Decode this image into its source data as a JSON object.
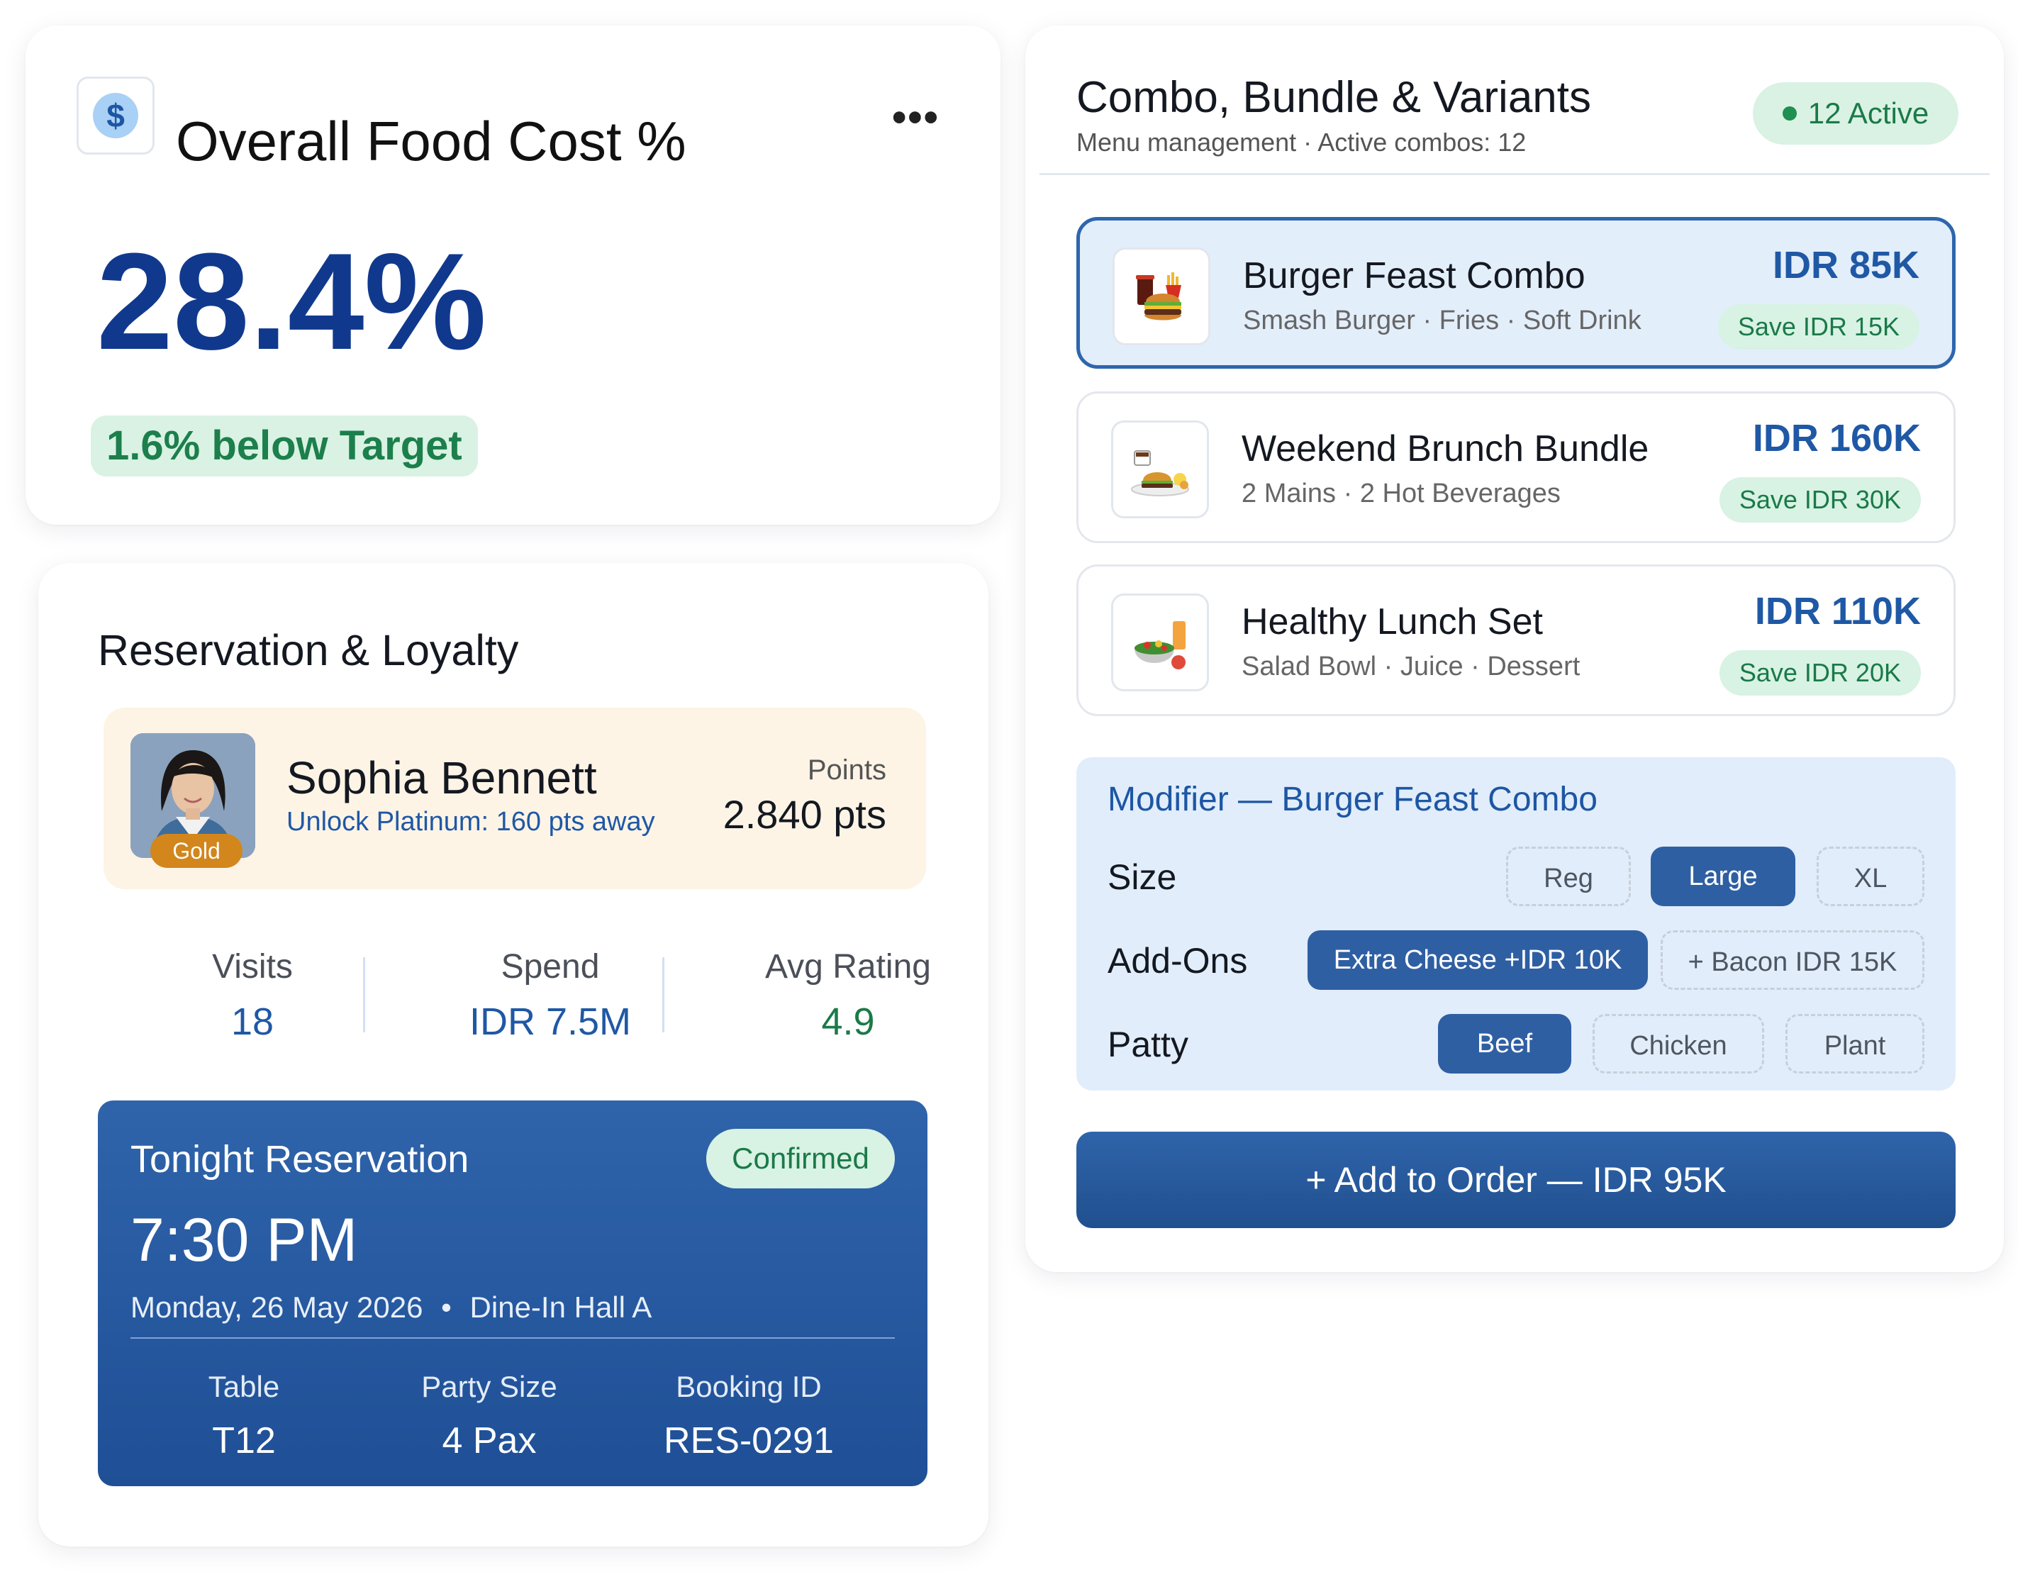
{
  "food_cost": {
    "icon": "dollar-icon",
    "title": "Overall Food Cost %",
    "value": "28.4%",
    "badge": "1.6% below Target"
  },
  "reservation": {
    "title": "Reservation & Loyalty",
    "guest": {
      "name": "Sophia Bennett",
      "tier": "Gold",
      "unlock": "Unlock Platinum: 160 pts away",
      "points_label": "Points",
      "points_value": "2.840 pts"
    },
    "stats": [
      {
        "label": "Visits",
        "value": "18"
      },
      {
        "label": "Spend",
        "value": "IDR 7.5M"
      },
      {
        "label": "Avg Rating",
        "value": "4.9"
      }
    ],
    "tonight": {
      "title": "Tonight Reservation",
      "status": "Confirmed",
      "time": "7:30 PM",
      "date": "Monday, 26 May 2026",
      "bullet": "•",
      "location": "Dine-In Hall A",
      "details": [
        {
          "label": "Table",
          "value": "T12"
        },
        {
          "label": "Party Size",
          "value": "4 Pax"
        },
        {
          "label": "Booking ID",
          "value": "RES-0291"
        }
      ]
    }
  },
  "combo": {
    "title": "Combo, Bundle & Variants",
    "subtitle": "Menu management · Active combos: 12",
    "active_badge": "12 Active",
    "items": [
      {
        "name": "Burger Feast Combo",
        "desc": "Smash Burger · Fries · Soft Drink",
        "price": "IDR 85K",
        "save": "Save IDR 15K",
        "icon": "burger-combo-icon",
        "selected": true
      },
      {
        "name": "Weekend Brunch Bundle",
        "desc": "2 Mains · 2 Hot Beverages",
        "price": "IDR 160K",
        "save": "Save IDR 30K",
        "icon": "brunch-icon",
        "selected": false
      },
      {
        "name": "Healthy Lunch Set",
        "desc": "Salad Bowl · Juice · Dessert",
        "price": "IDR 110K",
        "save": "Save IDR 20K",
        "icon": "salad-icon",
        "selected": false
      }
    ],
    "modifier": {
      "title": "Modifier — Burger Feast Combo",
      "size": {
        "label": "Size",
        "options": [
          "Reg",
          "Large",
          "XL"
        ],
        "selected": "Large"
      },
      "addons": {
        "label": "Add-Ons",
        "options": [
          "Extra Cheese +IDR 10K",
          "+ Bacon IDR 15K"
        ],
        "selected": "Extra Cheese +IDR 10K"
      },
      "patty": {
        "label": "Patty",
        "options": [
          "Beef",
          "Chicken",
          "Plant"
        ],
        "selected": "Beef"
      }
    },
    "add_button": "+ Add to Order — IDR 95K"
  },
  "colors": {
    "primary": "#2f5fa3",
    "accent_text": "#1f58a5",
    "success": "#1a7a48",
    "success_bg": "#d8f2e4",
    "gold": "#d2861c"
  }
}
